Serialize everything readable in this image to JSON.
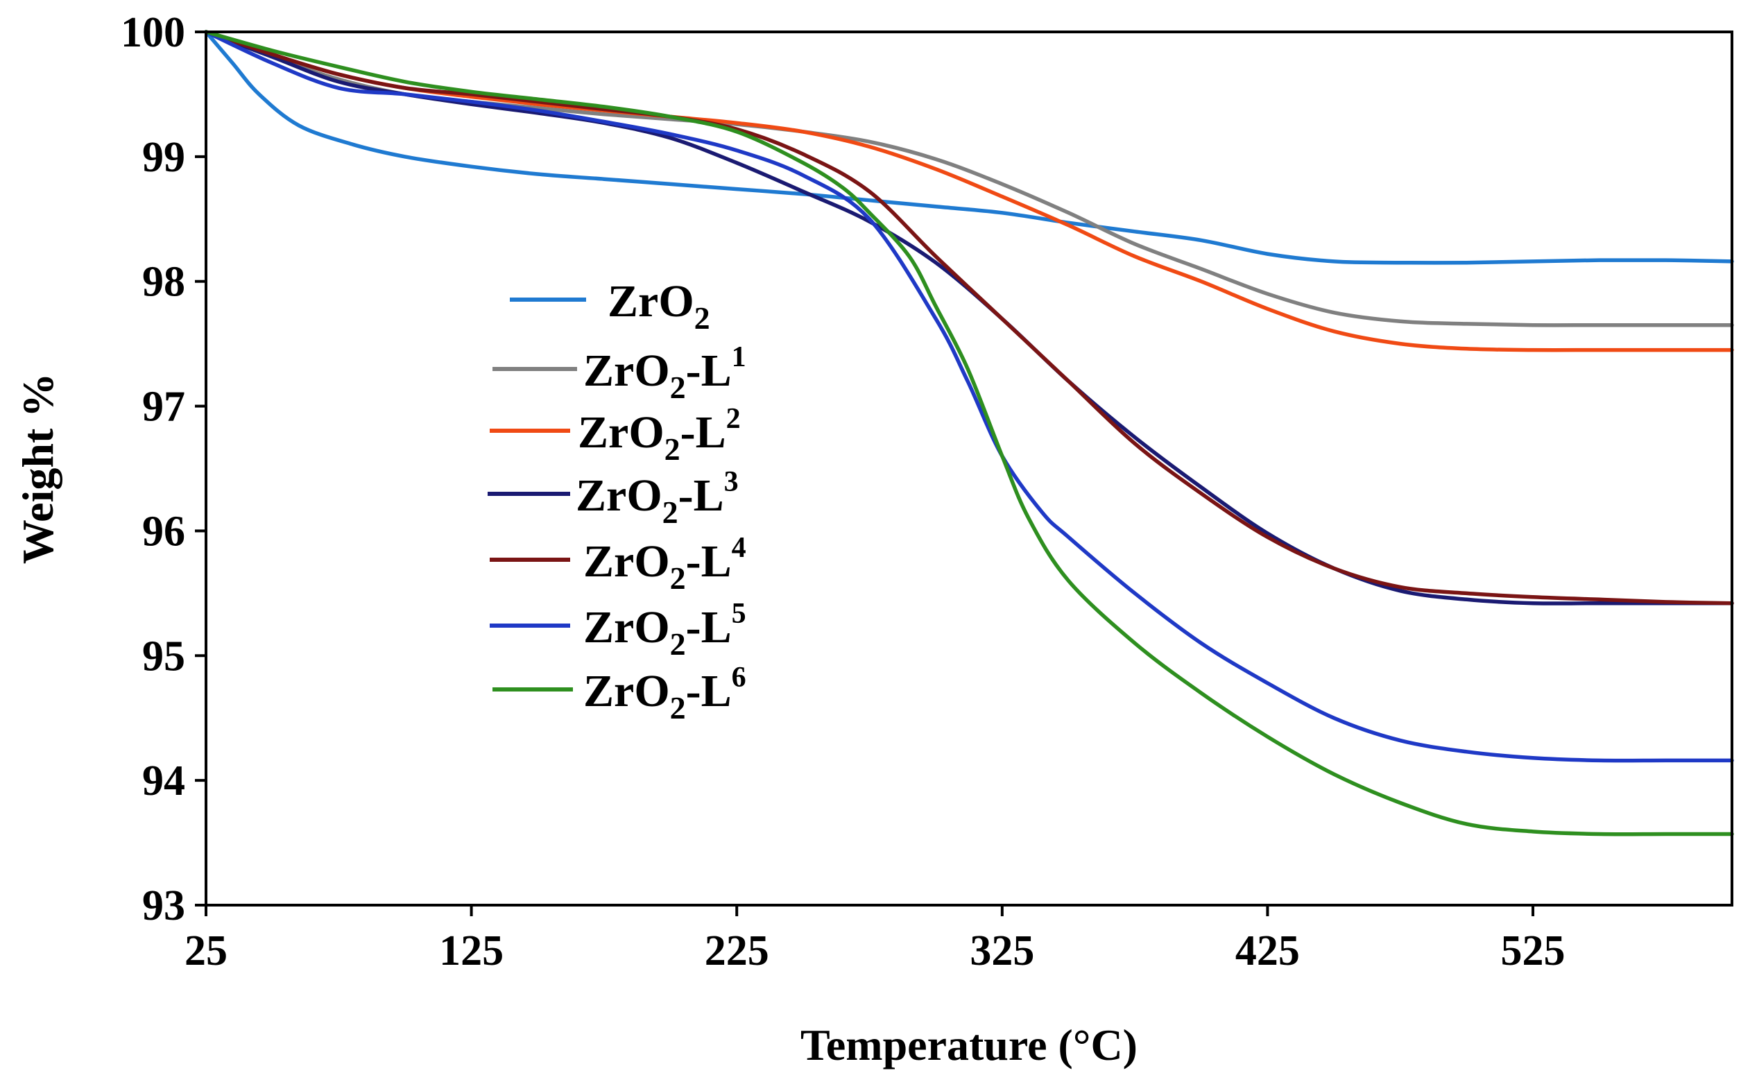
{
  "chart_data": {
    "type": "line",
    "title": "",
    "xlabel": "Temperature (°C)",
    "ylabel": "Weight %",
    "xlim": [
      25,
      600
    ],
    "ylim": [
      93,
      100
    ],
    "x_ticks": [
      25,
      125,
      225,
      325,
      425,
      525
    ],
    "x_tick_labels": [
      "25",
      "125",
      "225",
      "325",
      "425",
      "525"
    ],
    "y_ticks": [
      93,
      94,
      95,
      96,
      97,
      98,
      99,
      100
    ],
    "y_tick_labels": [
      "93",
      "94",
      "95",
      "96",
      "97",
      "98",
      "99",
      "100"
    ],
    "grid": false,
    "legend_position": "left-center",
    "series": [
      {
        "name": "ZrO2",
        "label_main": "ZrO",
        "label_sub": "2",
        "label_suffix": "",
        "label_sup": "",
        "color": "#1f7ad1",
        "x": [
          25,
          35,
          45,
          60,
          80,
          100,
          125,
          150,
          175,
          200,
          225,
          250,
          275,
          300,
          325,
          350,
          375,
          400,
          425,
          450,
          475,
          500,
          525,
          550,
          575,
          600
        ],
        "y": [
          100,
          99.75,
          99.5,
          99.25,
          99.1,
          99.0,
          98.92,
          98.86,
          98.82,
          98.78,
          98.74,
          98.7,
          98.65,
          98.6,
          98.55,
          98.47,
          98.4,
          98.33,
          98.22,
          98.16,
          98.15,
          98.15,
          98.16,
          98.17,
          98.17,
          98.16
        ]
      },
      {
        "name": "ZrO2-L1",
        "label_main": "ZrO",
        "label_sub": "2",
        "label_suffix": "-L",
        "label_sup": "1",
        "color": "#808080",
        "x": [
          25,
          50,
          75,
          100,
          125,
          150,
          175,
          200,
          225,
          250,
          275,
          300,
          325,
          350,
          375,
          400,
          425,
          450,
          475,
          500,
          525,
          550,
          575,
          600
        ],
        "y": [
          100,
          99.8,
          99.62,
          99.5,
          99.44,
          99.39,
          99.34,
          99.3,
          99.26,
          99.2,
          99.12,
          98.98,
          98.78,
          98.55,
          98.3,
          98.1,
          97.9,
          97.75,
          97.68,
          97.66,
          97.65,
          97.65,
          97.65,
          97.65
        ]
      },
      {
        "name": "ZrO2-L2",
        "label_main": "ZrO",
        "label_sub": "2",
        "label_suffix": "-L",
        "label_sup": "2",
        "color": "#f04a14",
        "x": [
          25,
          50,
          75,
          100,
          125,
          150,
          175,
          200,
          225,
          250,
          275,
          300,
          325,
          350,
          375,
          400,
          425,
          450,
          475,
          500,
          525,
          550,
          575,
          600
        ],
        "y": [
          100,
          99.82,
          99.66,
          99.55,
          99.48,
          99.42,
          99.37,
          99.32,
          99.27,
          99.2,
          99.08,
          98.9,
          98.68,
          98.45,
          98.2,
          98.0,
          97.78,
          97.6,
          97.5,
          97.46,
          97.45,
          97.45,
          97.45,
          97.45
        ]
      },
      {
        "name": "ZrO2-L3",
        "label_main": "ZrO",
        "label_sub": "2",
        "label_suffix": "-L",
        "label_sup": "3",
        "color": "#1a1a72",
        "x": [
          25,
          50,
          75,
          100,
          125,
          150,
          175,
          200,
          225,
          250,
          275,
          300,
          325,
          350,
          375,
          400,
          425,
          450,
          475,
          500,
          525,
          550,
          575,
          600
        ],
        "y": [
          100,
          99.8,
          99.6,
          99.5,
          99.42,
          99.35,
          99.27,
          99.15,
          98.95,
          98.72,
          98.48,
          98.15,
          97.7,
          97.2,
          96.75,
          96.35,
          95.98,
          95.7,
          95.52,
          95.45,
          95.42,
          95.42,
          95.42,
          95.42
        ]
      },
      {
        "name": "ZrO2-L4",
        "label_main": "ZrO",
        "label_sub": "2",
        "label_suffix": "-L",
        "label_sup": "4",
        "color": "#7a1414",
        "x": [
          25,
          50,
          75,
          100,
          125,
          150,
          175,
          200,
          225,
          250,
          275,
          300,
          325,
          350,
          375,
          400,
          425,
          450,
          475,
          500,
          525,
          550,
          575,
          600
        ],
        "y": [
          100,
          99.82,
          99.66,
          99.55,
          99.5,
          99.44,
          99.38,
          99.32,
          99.22,
          99.02,
          98.72,
          98.2,
          97.7,
          97.2,
          96.7,
          96.3,
          95.95,
          95.7,
          95.55,
          95.5,
          95.47,
          95.45,
          95.43,
          95.42
        ]
      },
      {
        "name": "ZrO2-L5",
        "label_main": "ZrO",
        "label_sub": "2",
        "label_suffix": "-L",
        "label_sup": "5",
        "color": "#1f39c6",
        "x": [
          25,
          50,
          75,
          100,
          125,
          150,
          175,
          200,
          225,
          250,
          275,
          300,
          312,
          325,
          340,
          350,
          375,
          400,
          425,
          450,
          475,
          500,
          525,
          550,
          575,
          600
        ],
        "y": [
          100,
          99.75,
          99.55,
          99.5,
          99.44,
          99.37,
          99.28,
          99.18,
          99.05,
          98.85,
          98.5,
          97.7,
          97.2,
          96.6,
          96.15,
          95.95,
          95.5,
          95.1,
          94.78,
          94.5,
          94.32,
          94.23,
          94.18,
          94.16,
          94.16,
          94.16
        ]
      },
      {
        "name": "ZrO2-L6",
        "label_main": "ZrO",
        "label_sub": "2",
        "label_suffix": "-L",
        "label_sup": "6",
        "color": "#2e8f1f",
        "x": [
          25,
          50,
          75,
          100,
          125,
          150,
          175,
          200,
          225,
          250,
          265,
          275,
          290,
          300,
          312,
          325,
          335,
          350,
          375,
          400,
          425,
          450,
          475,
          500,
          525,
          550,
          575,
          600
        ],
        "y": [
          100,
          99.85,
          99.72,
          99.6,
          99.52,
          99.46,
          99.4,
          99.32,
          99.2,
          98.95,
          98.75,
          98.55,
          98.2,
          97.8,
          97.3,
          96.6,
          96.1,
          95.6,
          95.1,
          94.7,
          94.35,
          94.05,
          93.82,
          93.65,
          93.59,
          93.57,
          93.57,
          93.57
        ]
      }
    ]
  }
}
